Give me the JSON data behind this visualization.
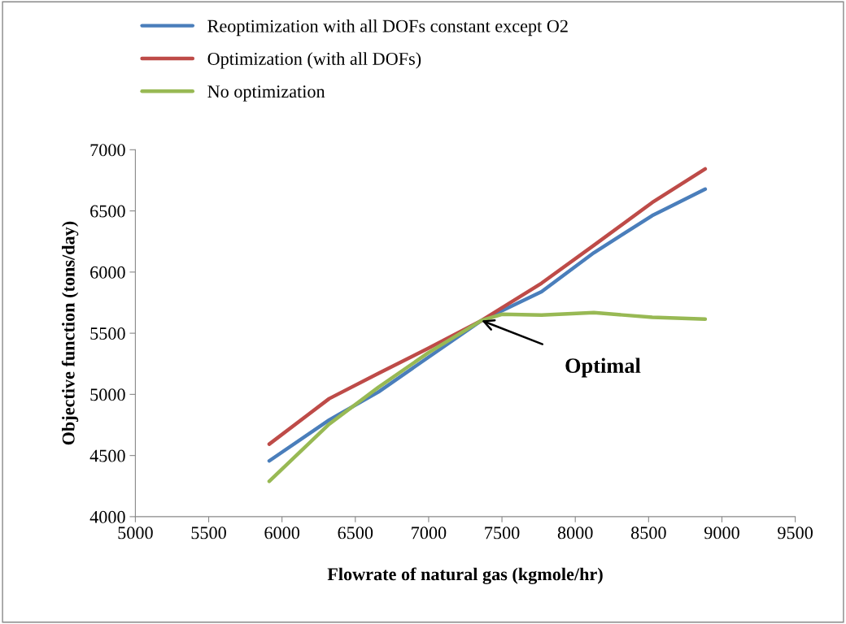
{
  "chart_data": {
    "type": "line",
    "xlabel": "Flowrate of natural gas (kgmole/hr)",
    "ylabel": "Objective function (tons/day)",
    "x": [
      5913,
      6322,
      6658,
      6994,
      7361,
      7770,
      8127,
      8525,
      8886
    ],
    "series": [
      {
        "name": "Reoptimization with all DOFs constant except O2",
        "color": "#4a7ebb",
        "values": [
          4456,
          4791,
          5020,
          5300,
          5604,
          5840,
          6158,
          6462,
          6678
        ]
      },
      {
        "name": "Optimization (with all DOFs)",
        "color": "#be4b48",
        "values": [
          4593,
          4965,
          5172,
          5375,
          5604,
          5909,
          6219,
          6569,
          6843
        ]
      },
      {
        "name": "No optimization",
        "color": "#98b954",
        "x": [
          5913,
          6322,
          6658,
          6994,
          7361,
          7500,
          7770,
          8127,
          8525,
          8886
        ],
        "values": [
          4289,
          4757,
          5058,
          5337,
          5604,
          5655,
          5648,
          5668,
          5630,
          5615
        ]
      }
    ],
    "annotations": [
      {
        "text": "Optimal",
        "x": 7361,
        "y": 5604
      }
    ],
    "xlim": [
      5000,
      9500
    ],
    "xticks": [
      5000,
      5500,
      6000,
      6500,
      7000,
      7500,
      8000,
      8500,
      9000,
      9500
    ],
    "ylim": [
      4000,
      7000
    ],
    "yticks": [
      4000,
      4500,
      5000,
      5500,
      6000,
      6500,
      7000
    ],
    "grid": false,
    "legend": "top",
    "marker": "none",
    "line_style": "solid"
  }
}
